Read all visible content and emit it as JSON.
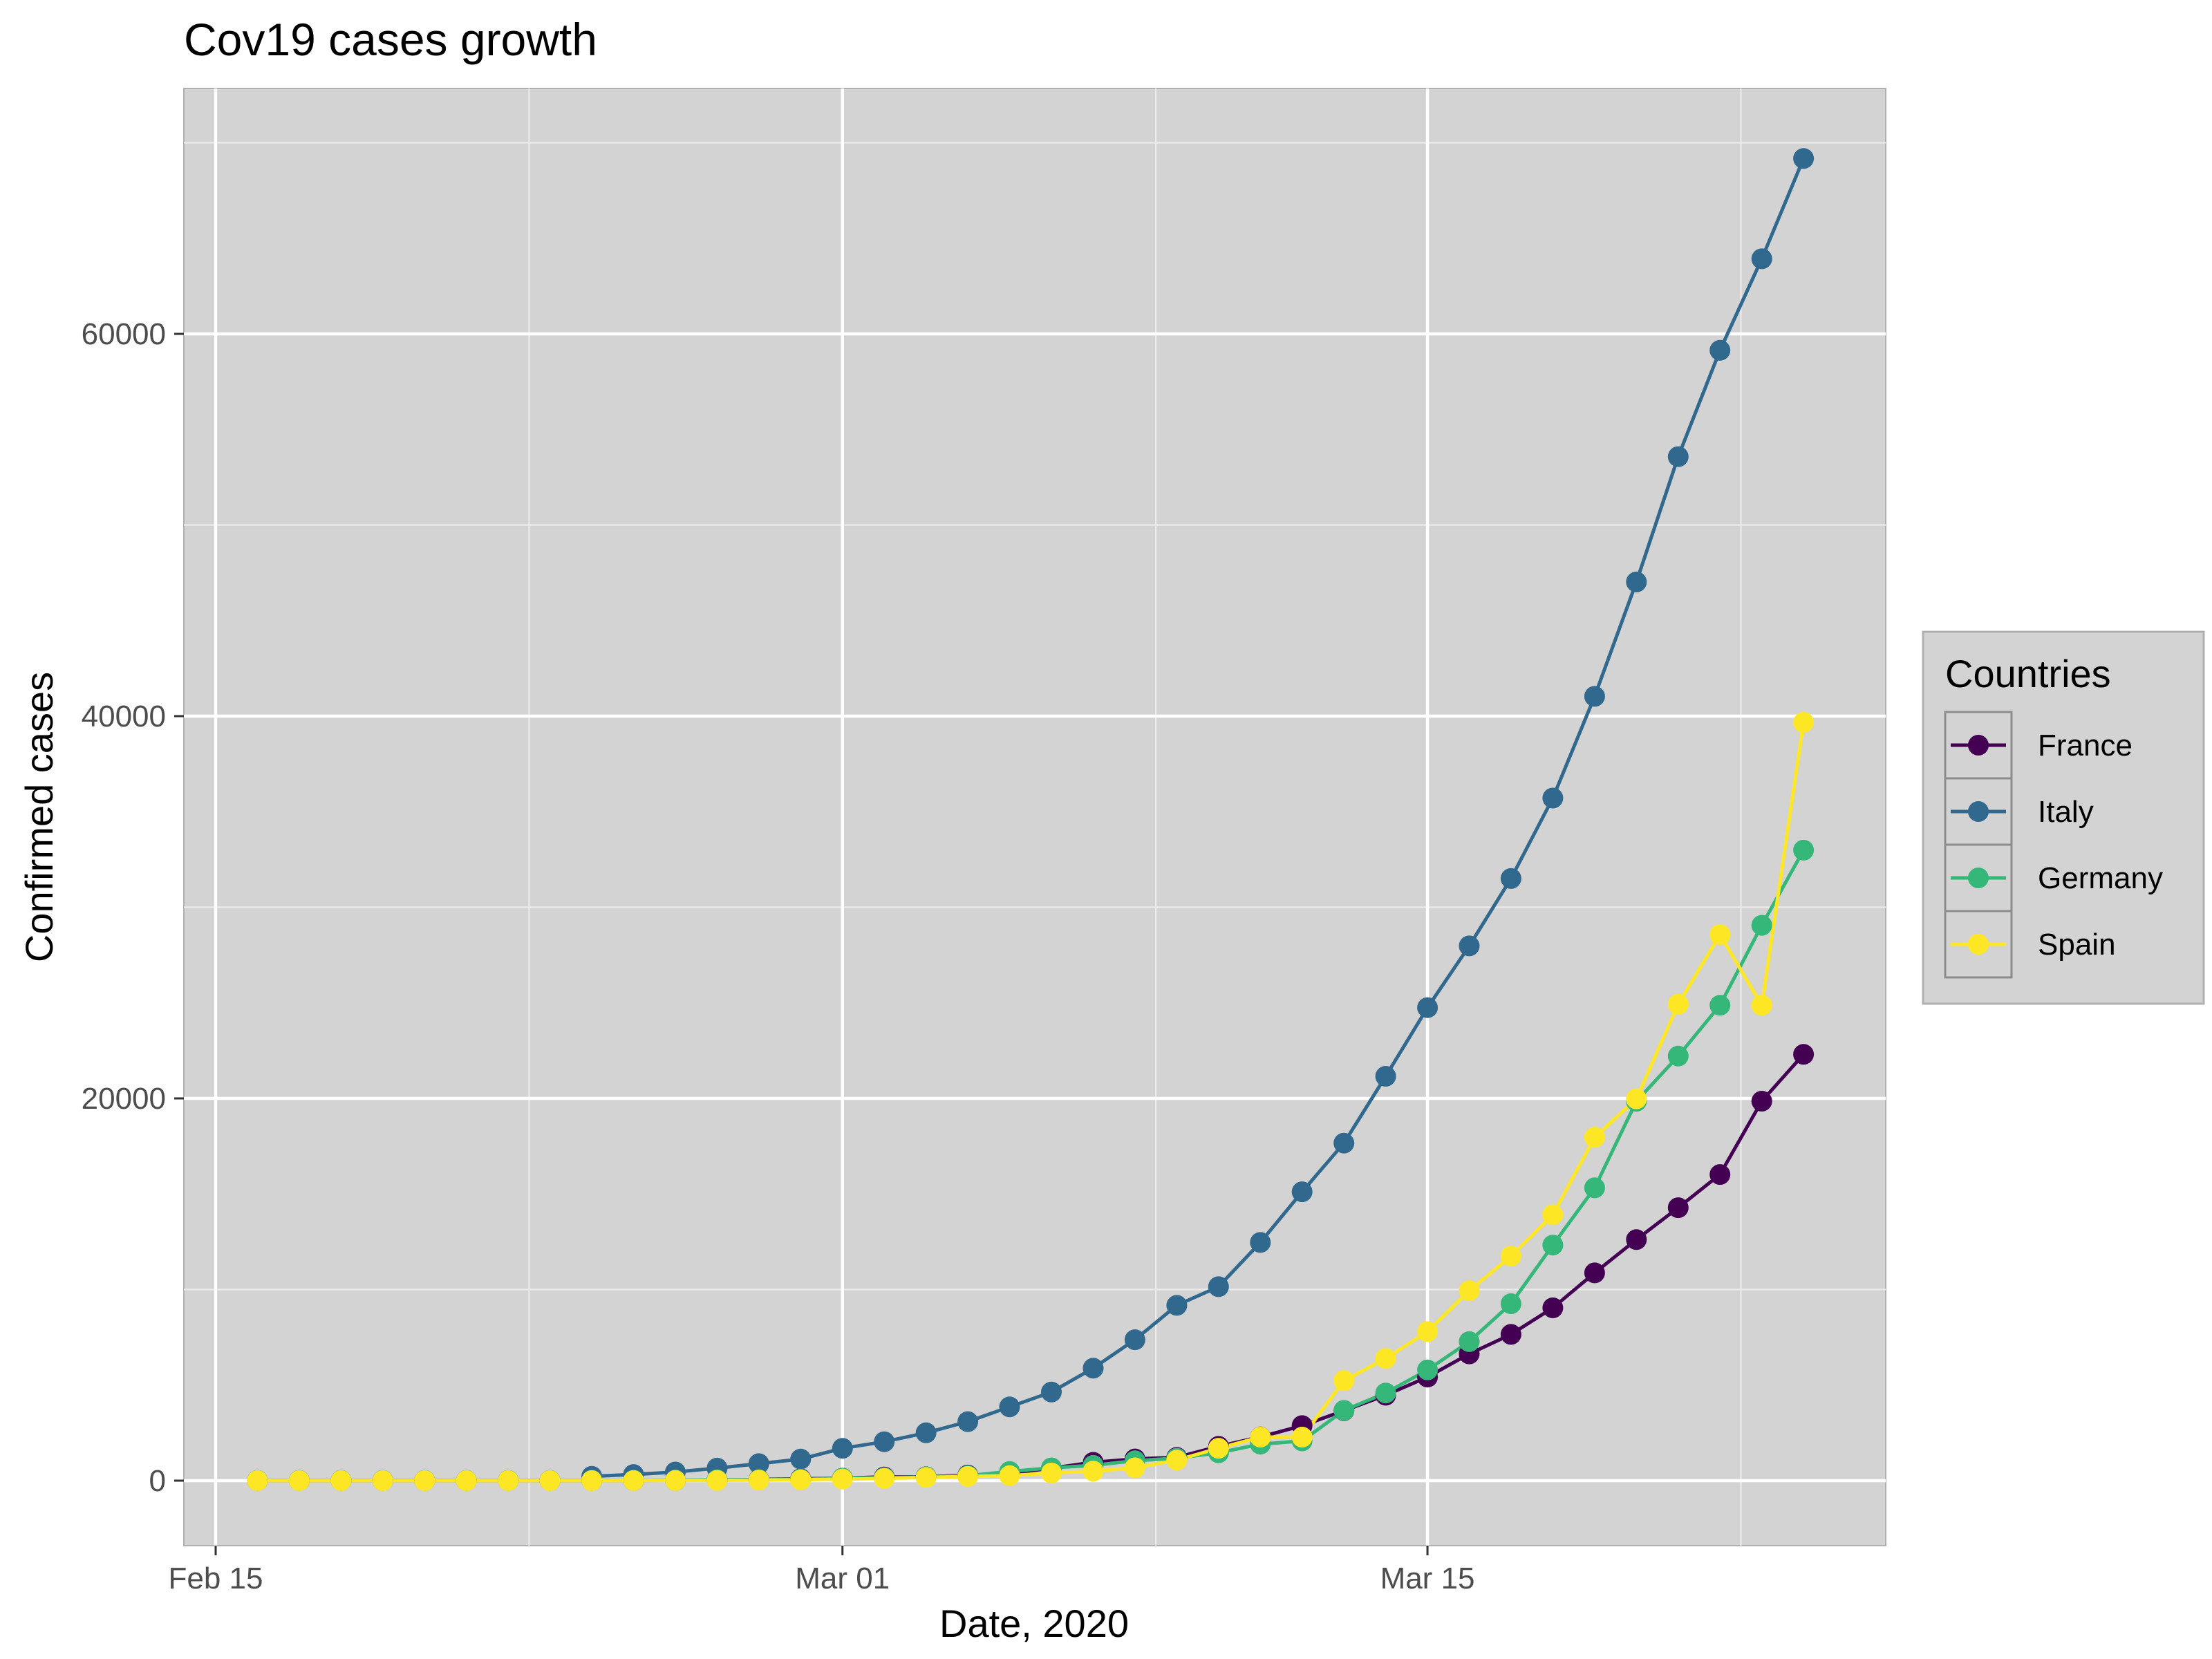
{
  "chart_data": {
    "type": "line",
    "title": "Cov19 cases growth",
    "xlabel": "Date, 2020",
    "ylabel": "Confirmed cases",
    "x_ticks": [
      "Feb 15",
      "Mar 01",
      "Mar 15"
    ],
    "y_ticks": [
      "0",
      "20000",
      "40000",
      "60000"
    ],
    "legend_title": "Countries",
    "legend_position": "right",
    "grid": true,
    "markers": true,
    "dates": [
      "2020-02-16",
      "2020-02-17",
      "2020-02-18",
      "2020-02-19",
      "2020-02-20",
      "2020-02-21",
      "2020-02-22",
      "2020-02-23",
      "2020-02-24",
      "2020-02-25",
      "2020-02-26",
      "2020-02-27",
      "2020-02-28",
      "2020-02-29",
      "2020-03-01",
      "2020-03-02",
      "2020-03-03",
      "2020-03-04",
      "2020-03-05",
      "2020-03-06",
      "2020-03-07",
      "2020-03-08",
      "2020-03-09",
      "2020-03-10",
      "2020-03-11",
      "2020-03-12",
      "2020-03-13",
      "2020-03-14",
      "2020-03-15",
      "2020-03-16",
      "2020-03-17",
      "2020-03-18",
      "2020-03-19",
      "2020-03-20",
      "2020-03-21",
      "2020-03-22",
      "2020-03-23",
      "2020-03-24"
    ],
    "series": [
      {
        "name": "France",
        "color": "#440154",
        "values": [
          12,
          12,
          12,
          12,
          12,
          12,
          12,
          12,
          12,
          14,
          18,
          38,
          57,
          100,
          130,
          191,
          204,
          288,
          380,
          656,
          957,
          1136,
          1217,
          1794,
          2284,
          2878,
          3661,
          4469,
          5423,
          6633,
          7652,
          9043,
          10871,
          12612,
          14282,
          16018,
          19856,
          22304
        ]
      },
      {
        "name": "Italy",
        "color": "#31688E",
        "values": [
          null,
          null,
          null,
          null,
          null,
          null,
          null,
          null,
          229,
          322,
          453,
          655,
          888,
          1128,
          1694,
          2036,
          2502,
          3089,
          3858,
          4636,
          5883,
          7375,
          9172,
          10149,
          12462,
          15113,
          17660,
          21157,
          24747,
          27980,
          31506,
          35713,
          41035,
          47021,
          53578,
          59138,
          63927,
          69176
        ]
      },
      {
        "name": "Germany",
        "color": "#35B779",
        "values": [
          16,
          16,
          16,
          16,
          16,
          16,
          16,
          16,
          16,
          17,
          27,
          46,
          48,
          79,
          130,
          159,
          196,
          262,
          482,
          670,
          799,
          1040,
          1176,
          1457,
          1908,
          2078,
          3675,
          4585,
          5795,
          7272,
          9257,
          12327,
          15320,
          19848,
          22213,
          24873,
          29056,
          32986
        ]
      },
      {
        "name": "Spain",
        "color": "#FDE725",
        "values": [
          2,
          2,
          2,
          2,
          2,
          2,
          2,
          2,
          2,
          6,
          13,
          15,
          32,
          45,
          84,
          120,
          165,
          222,
          259,
          400,
          500,
          673,
          1073,
          1695,
          2277,
          2277,
          5232,
          6391,
          7798,
          9942,
          11748,
          13910,
          17963,
          19980,
          24926,
          28572,
          24873,
          39673
        ]
      }
    ]
  }
}
